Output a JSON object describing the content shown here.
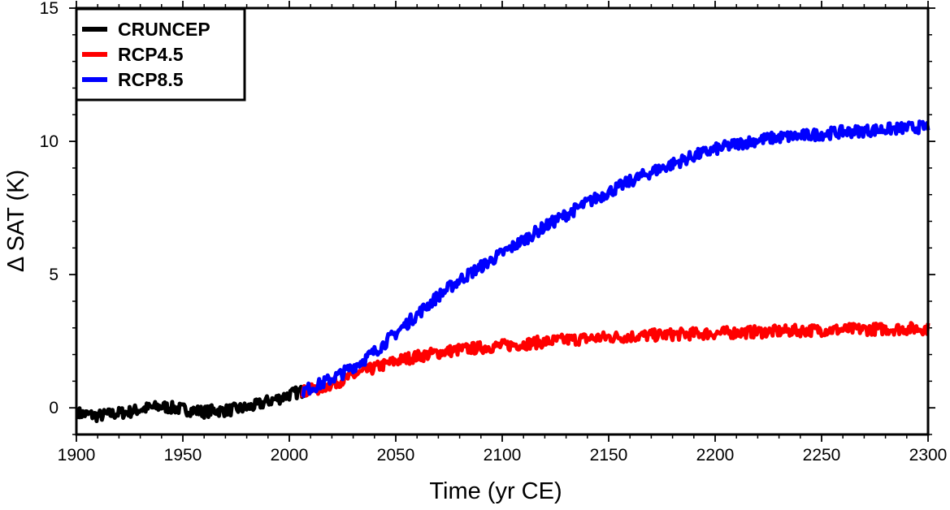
{
  "chart_data": {
    "type": "line",
    "title": "",
    "xlabel": "Time (yr CE)",
    "ylabel": "Δ SAT (K)",
    "xlim": [
      1900,
      2300
    ],
    "ylim": [
      -1,
      15
    ],
    "x_ticks": [
      1900,
      1950,
      2000,
      2050,
      2100,
      2150,
      2200,
      2250,
      2300
    ],
    "y_ticks": [
      0,
      5,
      10,
      15
    ],
    "x_minor_step": 10,
    "y_minor_step": 1,
    "grid": false,
    "legend_position": "top-left",
    "series": [
      {
        "name": "CRUNCEP",
        "color": "#000000",
        "points": [
          [
            1901,
            -0.2
          ],
          [
            1905,
            -0.25
          ],
          [
            1910,
            -0.3
          ],
          [
            1915,
            -0.25
          ],
          [
            1920,
            -0.2
          ],
          [
            1925,
            -0.15
          ],
          [
            1930,
            -0.05
          ],
          [
            1935,
            0.0
          ],
          [
            1940,
            0.05
          ],
          [
            1945,
            0.0
          ],
          [
            1950,
            -0.05
          ],
          [
            1955,
            -0.1
          ],
          [
            1960,
            -0.15
          ],
          [
            1965,
            -0.1
          ],
          [
            1970,
            -0.1
          ],
          [
            1975,
            -0.05
          ],
          [
            1980,
            0.0
          ],
          [
            1985,
            0.1
          ],
          [
            1990,
            0.25
          ],
          [
            1995,
            0.35
          ],
          [
            2000,
            0.5
          ],
          [
            2005,
            0.6
          ],
          [
            2008,
            0.65
          ]
        ]
      },
      {
        "name": "RCP4.5",
        "color": "#ff0000",
        "points": [
          [
            2006,
            0.6
          ],
          [
            2010,
            0.65
          ],
          [
            2015,
            0.75
          ],
          [
            2020,
            0.9
          ],
          [
            2025,
            1.05
          ],
          [
            2030,
            1.2
          ],
          [
            2035,
            1.35
          ],
          [
            2040,
            1.5
          ],
          [
            2045,
            1.62
          ],
          [
            2050,
            1.75
          ],
          [
            2055,
            1.85
          ],
          [
            2060,
            1.93
          ],
          [
            2065,
            2.0
          ],
          [
            2070,
            2.07
          ],
          [
            2075,
            2.13
          ],
          [
            2080,
            2.18
          ],
          [
            2085,
            2.22
          ],
          [
            2090,
            2.26
          ],
          [
            2095,
            2.3
          ],
          [
            2100,
            2.33
          ],
          [
            2110,
            2.4
          ],
          [
            2120,
            2.48
          ],
          [
            2130,
            2.55
          ],
          [
            2140,
            2.6
          ],
          [
            2150,
            2.65
          ],
          [
            2160,
            2.68
          ],
          [
            2170,
            2.72
          ],
          [
            2180,
            2.75
          ],
          [
            2190,
            2.78
          ],
          [
            2200,
            2.8
          ],
          [
            2210,
            2.83
          ],
          [
            2220,
            2.85
          ],
          [
            2230,
            2.87
          ],
          [
            2240,
            2.9
          ],
          [
            2250,
            2.92
          ],
          [
            2260,
            2.93
          ],
          [
            2270,
            2.95
          ],
          [
            2280,
            2.96
          ],
          [
            2290,
            2.97
          ],
          [
            2300,
            2.98
          ]
        ]
      },
      {
        "name": "RCP8.5",
        "color": "#0000ff",
        "points": [
          [
            2006,
            0.6
          ],
          [
            2010,
            0.75
          ],
          [
            2015,
            0.9
          ],
          [
            2020,
            1.1
          ],
          [
            2025,
            1.3
          ],
          [
            2030,
            1.55
          ],
          [
            2035,
            1.8
          ],
          [
            2040,
            2.1
          ],
          [
            2045,
            2.45
          ],
          [
            2050,
            2.8
          ],
          [
            2055,
            3.15
          ],
          [
            2060,
            3.5
          ],
          [
            2065,
            3.85
          ],
          [
            2070,
            4.2
          ],
          [
            2075,
            4.5
          ],
          [
            2080,
            4.8
          ],
          [
            2085,
            5.05
          ],
          [
            2090,
            5.3
          ],
          [
            2095,
            5.55
          ],
          [
            2100,
            5.8
          ],
          [
            2110,
            6.3
          ],
          [
            2120,
            6.8
          ],
          [
            2130,
            7.25
          ],
          [
            2140,
            7.7
          ],
          [
            2150,
            8.1
          ],
          [
            2160,
            8.5
          ],
          [
            2170,
            8.85
          ],
          [
            2180,
            9.15
          ],
          [
            2190,
            9.45
          ],
          [
            2200,
            9.7
          ],
          [
            2210,
            9.9
          ],
          [
            2220,
            10.05
          ],
          [
            2230,
            10.15
          ],
          [
            2240,
            10.2
          ],
          [
            2250,
            10.28
          ],
          [
            2260,
            10.35
          ],
          [
            2270,
            10.4
          ],
          [
            2280,
            10.45
          ],
          [
            2290,
            10.5
          ],
          [
            2300,
            10.55
          ]
        ]
      }
    ]
  }
}
